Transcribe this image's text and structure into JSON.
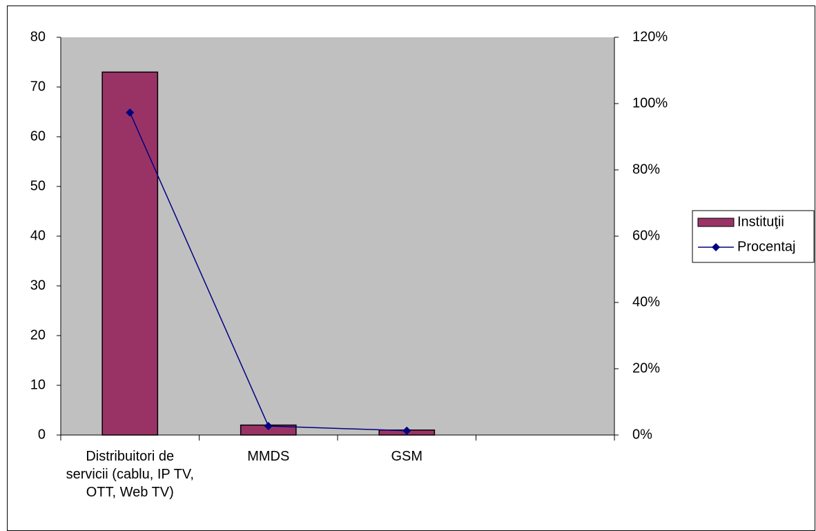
{
  "chart_data": {
    "type": "combo",
    "categories": [
      "Distribuitori de servicii  (cablu, IP TV, OTT, Web TV)",
      "MMDS",
      "GSM",
      null
    ],
    "series": [
      {
        "name": "Instituţii",
        "type": "bar",
        "color": "#993366",
        "values": [
          73,
          2,
          1,
          null
        ]
      },
      {
        "name": "Procentaj",
        "type": "line",
        "axis": "y2",
        "color": "#000080",
        "values": [
          97.3,
          2.7,
          1.3,
          null
        ]
      }
    ],
    "ylim": [
      0,
      80
    ],
    "yticks": [
      0,
      10,
      20,
      30,
      40,
      50,
      60,
      70,
      80
    ],
    "y2lim": [
      0,
      120
    ],
    "y2ticks": [
      {
        "value": 0,
        "label": "0%"
      },
      {
        "value": 20,
        "label": "20%"
      },
      {
        "value": 40,
        "label": "40%"
      },
      {
        "value": 60,
        "label": "60%"
      },
      {
        "value": 80,
        "label": "80%"
      },
      {
        "value": 100,
        "label": "100%"
      },
      {
        "value": 120,
        "label": "120%"
      }
    ],
    "plot_background": "#c0c0c0",
    "grid": false,
    "legend": "right"
  }
}
